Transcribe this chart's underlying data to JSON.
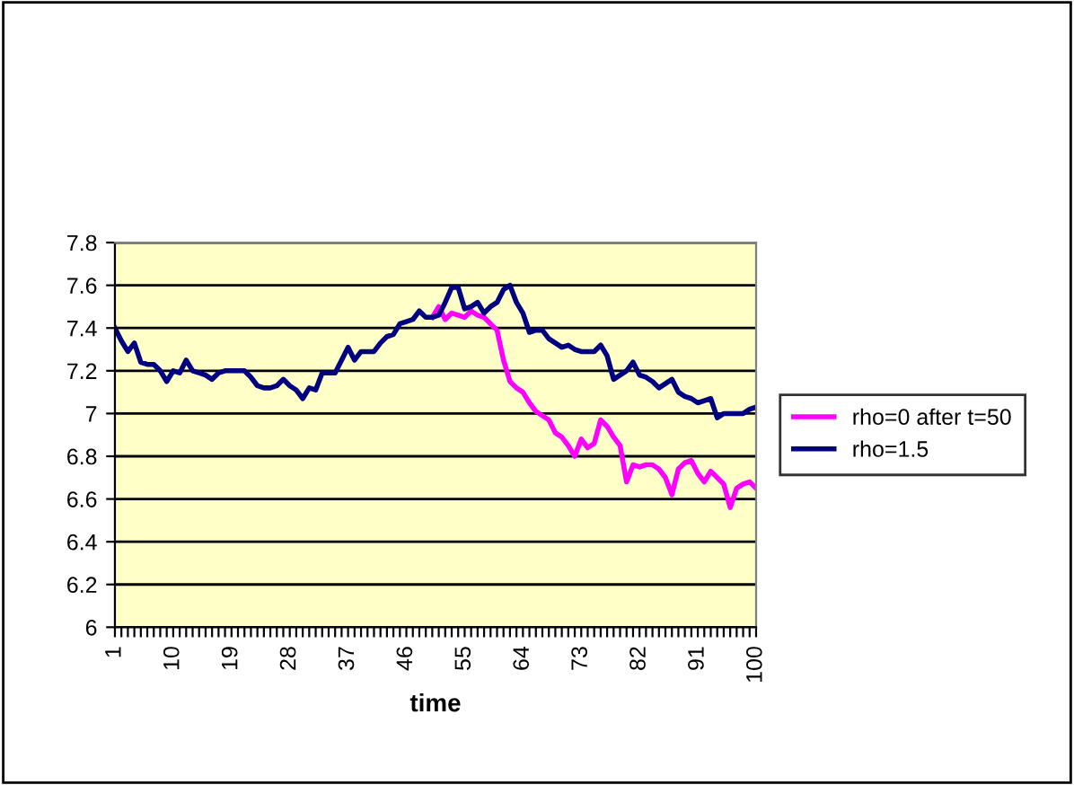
{
  "chart_data": {
    "type": "line",
    "xlabel": "time",
    "categories": [
      "1",
      null,
      null,
      null,
      null,
      null,
      null,
      null,
      null,
      "10",
      null,
      null,
      null,
      null,
      null,
      null,
      null,
      null,
      "19",
      null,
      null,
      null,
      null,
      null,
      null,
      null,
      null,
      "28",
      null,
      null,
      null,
      null,
      null,
      null,
      null,
      null,
      "37",
      null,
      null,
      null,
      null,
      null,
      null,
      null,
      null,
      "46",
      null,
      null,
      null,
      null,
      null,
      null,
      null,
      null,
      "55",
      null,
      null,
      null,
      null,
      null,
      null,
      null,
      null,
      "64",
      null,
      null,
      null,
      null,
      null,
      null,
      null,
      null,
      "73",
      null,
      null,
      null,
      null,
      null,
      null,
      null,
      null,
      "82",
      null,
      null,
      null,
      null,
      null,
      null,
      null,
      null,
      "91",
      null,
      null,
      null,
      null,
      null,
      null,
      null,
      null,
      "100"
    ],
    "series": [
      {
        "name": "rho=0 after t=50",
        "color": "#ff00ff",
        "values": [
          null,
          null,
          null,
          null,
          null,
          null,
          null,
          null,
          null,
          null,
          null,
          null,
          null,
          null,
          null,
          null,
          null,
          null,
          null,
          null,
          null,
          null,
          null,
          null,
          null,
          null,
          null,
          null,
          null,
          null,
          null,
          null,
          null,
          null,
          null,
          null,
          null,
          null,
          null,
          null,
          null,
          null,
          null,
          null,
          null,
          null,
          null,
          null,
          null,
          7.45,
          7.5,
          7.44,
          7.47,
          7.46,
          7.45,
          7.48,
          7.46,
          7.45,
          7.42,
          7.39,
          7.25,
          7.15,
          7.12,
          7.1,
          7.05,
          7.01,
          6.99,
          6.97,
          6.91,
          6.89,
          6.85,
          6.8,
          6.88,
          6.84,
          6.86,
          6.97,
          6.94,
          6.89,
          6.85,
          6.68,
          6.76,
          6.75,
          6.76,
          6.76,
          6.74,
          6.7,
          6.62,
          6.74,
          6.77,
          6.78,
          6.72,
          6.68,
          6.73,
          6.7,
          6.67,
          6.56,
          6.65,
          6.67,
          6.68,
          6.65
        ]
      },
      {
        "name": "rho=1.5",
        "color": "#000080",
        "values": [
          7.4,
          7.34,
          7.29,
          7.33,
          7.24,
          7.23,
          7.23,
          7.2,
          7.15,
          7.2,
          7.19,
          7.25,
          7.2,
          7.19,
          7.18,
          7.16,
          7.19,
          7.2,
          7.2,
          7.2,
          7.2,
          7.17,
          7.13,
          7.12,
          7.12,
          7.13,
          7.16,
          7.13,
          7.11,
          7.07,
          7.12,
          7.11,
          7.19,
          7.19,
          7.19,
          7.25,
          7.31,
          7.25,
          7.29,
          7.29,
          7.29,
          7.33,
          7.36,
          7.37,
          7.42,
          7.43,
          7.44,
          7.48,
          7.45,
          7.45,
          7.46,
          7.52,
          7.59,
          7.59,
          7.49,
          7.5,
          7.52,
          7.47,
          7.5,
          7.52,
          7.58,
          7.6,
          7.52,
          7.47,
          7.38,
          7.39,
          7.39,
          7.35,
          7.33,
          7.31,
          7.32,
          7.3,
          7.29,
          7.29,
          7.29,
          7.32,
          7.27,
          7.16,
          7.18,
          7.2,
          7.24,
          7.18,
          7.17,
          7.15,
          7.12,
          7.14,
          7.16,
          7.1,
          7.08,
          7.07,
          7.05,
          7.06,
          7.07,
          6.98,
          7.0,
          7.0,
          7.0,
          7.0,
          7.02,
          7.03
        ]
      }
    ],
    "ylim": [
      6,
      7.8
    ],
    "yticks": [
      6,
      6.2,
      6.4,
      6.6,
      6.8,
      7,
      7.2,
      7.4,
      7.6,
      7.8
    ],
    "grid": "y",
    "legend": "right",
    "line_style": "solid",
    "marker": "none"
  }
}
